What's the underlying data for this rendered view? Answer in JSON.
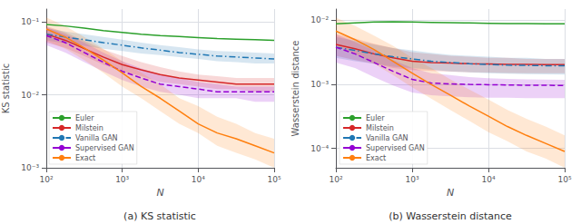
{
  "chart_data": [
    {
      "type": "line",
      "title": "(a) KS statistic",
      "xlabel": "N",
      "ylabel": "KS statistic",
      "log": true,
      "grid": true,
      "legend": "lower left",
      "x": [
        100,
        178,
        316,
        562,
        1000,
        1778,
        3162,
        5623,
        10000,
        17783,
        31623,
        56234,
        100000
      ],
      "xlim": [
        100,
        100000
      ],
      "xticks": [
        {
          "value": 100,
          "label": "10²"
        },
        {
          "value": 1000,
          "label": "10³"
        },
        {
          "value": 10000,
          "label": "10⁴"
        },
        {
          "value": 100000,
          "label": "10⁵"
        }
      ],
      "ylim": [
        0.001,
        0.15
      ],
      "yticks": [
        {
          "value": 0.001,
          "label": "10⁻³"
        },
        {
          "value": 0.01,
          "label": "10⁻²"
        },
        {
          "value": 0.1,
          "label": "10⁻¹"
        }
      ],
      "series": [
        {
          "name": "Euler",
          "color": "#2ca02c",
          "line_style": "solid",
          "values": [
            0.092,
            0.088,
            0.082,
            0.076,
            0.072,
            0.068,
            0.065,
            0.063,
            0.061,
            0.059,
            0.058,
            0.057,
            0.056
          ]
        },
        {
          "name": "Milstein",
          "color": "#d62728",
          "line_style": "solid",
          "values": [
            0.068,
            0.056,
            0.043,
            0.033,
            0.026,
            0.022,
            0.019,
            0.017,
            0.016,
            0.015,
            0.014,
            0.014,
            0.014
          ],
          "lo": [
            0.052,
            0.044,
            0.034,
            0.026,
            0.021,
            0.018,
            0.015,
            0.014,
            0.013,
            0.012,
            0.012,
            0.011,
            0.011
          ],
          "hi": [
            0.088,
            0.072,
            0.055,
            0.042,
            0.034,
            0.028,
            0.024,
            0.021,
            0.019,
            0.018,
            0.017,
            0.017,
            0.017
          ]
        },
        {
          "name": "Vanilla GAN",
          "color": "#1f77b4",
          "line_style": "dashdot",
          "values": [
            0.068,
            0.062,
            0.057,
            0.052,
            0.048,
            0.044,
            0.041,
            0.038,
            0.036,
            0.034,
            0.033,
            0.032,
            0.031
          ],
          "lo": [
            0.056,
            0.051,
            0.047,
            0.043,
            0.04,
            0.037,
            0.035,
            0.033,
            0.031,
            0.029,
            0.028,
            0.027,
            0.027
          ],
          "hi": [
            0.082,
            0.074,
            0.068,
            0.062,
            0.057,
            0.052,
            0.048,
            0.045,
            0.042,
            0.04,
            0.039,
            0.038,
            0.037
          ]
        },
        {
          "name": "Supervised GAN",
          "color": "#9400D3",
          "line_style": "dashed",
          "values": [
            0.065,
            0.052,
            0.038,
            0.028,
            0.021,
            0.017,
            0.014,
            0.013,
            0.012,
            0.011,
            0.011,
            0.011,
            0.011
          ],
          "lo": [
            0.048,
            0.038,
            0.028,
            0.021,
            0.016,
            0.013,
            0.011,
            0.01,
            0.009,
            0.009,
            0.009,
            0.008,
            0.008
          ],
          "hi": [
            0.085,
            0.068,
            0.052,
            0.038,
            0.029,
            0.023,
            0.019,
            0.017,
            0.015,
            0.014,
            0.013,
            0.013,
            0.013
          ]
        },
        {
          "name": "Exact",
          "color": "#ff7f0e",
          "line_style": "solid",
          "values": [
            0.08,
            0.062,
            0.044,
            0.03,
            0.02,
            0.013,
            0.009,
            0.006,
            0.004,
            0.003,
            0.0025,
            0.002,
            0.0016
          ],
          "lo": [
            0.055,
            0.043,
            0.03,
            0.02,
            0.013,
            0.009,
            0.006,
            0.004,
            0.003,
            0.002,
            0.0016,
            0.0013,
            0.001
          ],
          "hi": [
            0.115,
            0.088,
            0.062,
            0.043,
            0.029,
            0.02,
            0.014,
            0.009,
            0.007,
            0.005,
            0.004,
            0.003,
            0.0025
          ]
        }
      ]
    },
    {
      "type": "line",
      "title": "(b) Wasserstein distance",
      "xlabel": "N",
      "ylabel": "Wasserstein distance",
      "log": true,
      "grid": true,
      "legend": "lower left",
      "x": [
        100,
        178,
        316,
        562,
        1000,
        1778,
        3162,
        5623,
        10000,
        17783,
        31623,
        56234,
        100000
      ],
      "xlim": [
        100,
        100000
      ],
      "xticks": [
        {
          "value": 100,
          "label": "10²"
        },
        {
          "value": 1000,
          "label": "10³"
        },
        {
          "value": 10000,
          "label": "10⁴"
        },
        {
          "value": 100000,
          "label": "10⁵"
        }
      ],
      "ylim": [
        5e-05,
        0.015
      ],
      "yticks": [
        {
          "value": 0.0001,
          "label": "10⁻⁴"
        },
        {
          "value": 0.001,
          "label": "10⁻³"
        },
        {
          "value": 0.01,
          "label": "10⁻²"
        }
      ],
      "series": [
        {
          "name": "Euler",
          "color": "#2ca02c",
          "line_style": "solid",
          "values": [
            0.0088,
            0.0091,
            0.0094,
            0.0095,
            0.0094,
            0.0093,
            0.0092,
            0.0091,
            0.009,
            0.0089,
            0.0089,
            0.0088,
            0.0088
          ]
        },
        {
          "name": "Milstein",
          "color": "#d62728",
          "line_style": "solid",
          "values": [
            0.0042,
            0.0036,
            0.003,
            0.0026,
            0.0023,
            0.0022,
            0.00215,
            0.0021,
            0.00208,
            0.00206,
            0.00205,
            0.00204,
            0.00203
          ],
          "lo": [
            0.0028,
            0.0024,
            0.0021,
            0.0018,
            0.00168,
            0.00162,
            0.00158,
            0.00155,
            0.00153,
            0.00151,
            0.0015,
            0.00149,
            0.00149
          ],
          "hi": [
            0.0062,
            0.0052,
            0.0043,
            0.0037,
            0.0032,
            0.003,
            0.0028,
            0.0027,
            0.0026,
            0.0026,
            0.0025,
            0.0025,
            0.0025
          ]
        },
        {
          "name": "Vanilla GAN",
          "color": "#1f77b4",
          "line_style": "dashdot",
          "values": [
            0.0038,
            0.0034,
            0.003,
            0.0027,
            0.0025,
            0.0023,
            0.0022,
            0.0021,
            0.00205,
            0.002,
            0.00198,
            0.00196,
            0.00195
          ],
          "lo": [
            0.0026,
            0.0023,
            0.0021,
            0.0019,
            0.0018,
            0.0017,
            0.0016,
            0.00155,
            0.0015,
            0.00147,
            0.00145,
            0.00143,
            0.00142
          ],
          "hi": [
            0.0055,
            0.0048,
            0.0042,
            0.0037,
            0.0034,
            0.0031,
            0.0029,
            0.0028,
            0.0027,
            0.0026,
            0.0026,
            0.0025,
            0.0025
          ]
        },
        {
          "name": "Supervised GAN",
          "color": "#9400D3",
          "line_style": "dashed",
          "values": [
            0.0038,
            0.003,
            0.0022,
            0.0016,
            0.0012,
            0.00105,
            0.00102,
            0.001,
            0.00099,
            0.00098,
            0.00097,
            0.00097,
            0.00096
          ],
          "lo": [
            0.0022,
            0.0018,
            0.0013,
            0.00096,
            0.00075,
            0.00068,
            0.00065,
            0.00063,
            0.00062,
            0.00062,
            0.00061,
            0.00061,
            0.00061
          ],
          "hi": [
            0.006,
            0.0046,
            0.0034,
            0.0024,
            0.0018,
            0.0015,
            0.0014,
            0.0013,
            0.00125,
            0.00122,
            0.0012,
            0.00119,
            0.00118
          ]
        },
        {
          "name": "Exact",
          "color": "#ff7f0e",
          "line_style": "solid",
          "values": [
            0.0068,
            0.005,
            0.0035,
            0.0023,
            0.0015,
            0.001,
            0.00068,
            0.00046,
            0.00032,
            0.00022,
            0.00016,
            0.00012,
            9e-05
          ],
          "lo": [
            0.004,
            0.003,
            0.0021,
            0.0014,
            0.0009,
            0.0006,
            0.0004,
            0.00027,
            0.00018,
            0.00013,
            9e-05,
            7e-05,
            5e-05
          ],
          "hi": [
            0.011,
            0.0082,
            0.0058,
            0.004,
            0.0026,
            0.0018,
            0.0012,
            0.00083,
            0.00058,
            0.0004,
            0.00029,
            0.00022,
            0.00016
          ]
        }
      ]
    }
  ]
}
